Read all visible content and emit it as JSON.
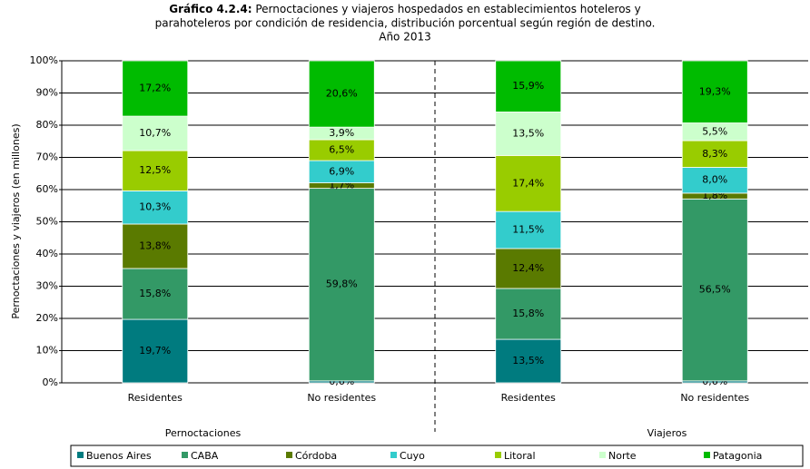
{
  "chart_data": {
    "type": "stacked_bar",
    "title": {
      "prefix": "Gráfico 4.2.4:",
      "lines": [
        "Pernoctaciones y viajeros hospedados en establecimientos hoteleros y",
        "parahoteleros por condición de residencia, distribución porcentual según región de destino.",
        "Año 2013"
      ]
    },
    "y_label": "Pernoctaciones y viajeros (en millones)",
    "categories": [
      "Residentes",
      "No residentes",
      "Residentes",
      "No residentes"
    ],
    "groups": [
      "Pernoctaciones",
      "Viajeros"
    ],
    "ylim": [
      0,
      100
    ],
    "yticks": [
      {
        "value": 0,
        "label": "0%"
      },
      {
        "value": 10,
        "label": "10%"
      },
      {
        "value": 20,
        "label": "20%"
      },
      {
        "value": 30,
        "label": "30%"
      },
      {
        "value": 40,
        "label": "40%"
      },
      {
        "value": 50,
        "label": "50%"
      },
      {
        "value": 60,
        "label": "60%"
      },
      {
        "value": 70,
        "label": "70%"
      },
      {
        "value": 80,
        "label": "80%"
      },
      {
        "value": 90,
        "label": "90%"
      },
      {
        "value": 100,
        "label": "100%"
      }
    ],
    "grid": true,
    "legend": "bottom",
    "series": [
      {
        "name": "Buenos Aires",
        "color": "#007b7f",
        "values": [
          19.7,
          0.6,
          13.5,
          0.6
        ],
        "value_labels": [
          "19,7%",
          "0,6%",
          "13,5%",
          "0,6%"
        ]
      },
      {
        "name": "CABA",
        "color": "#339966",
        "values": [
          15.8,
          59.8,
          15.8,
          56.5
        ],
        "value_labels": [
          "15,8%",
          "59,8%",
          "15,8%",
          "56,5%"
        ]
      },
      {
        "name": "Córdoba",
        "color": "#5a7a00",
        "values": [
          13.8,
          1.7,
          12.4,
          1.8
        ],
        "value_labels": [
          "13,8%",
          "1,7%",
          "12,4%",
          "1,8%"
        ]
      },
      {
        "name": "Cuyo",
        "color": "#33cccc",
        "values": [
          10.3,
          6.9,
          11.5,
          8.0
        ],
        "value_labels": [
          "10,3%",
          "6,9%",
          "11,5%",
          "8,0%"
        ]
      },
      {
        "name": "Litoral",
        "color": "#99cc00",
        "values": [
          12.5,
          6.5,
          17.4,
          8.3
        ],
        "value_labels": [
          "12,5%",
          "6,5%",
          "17,4%",
          "8,3%"
        ]
      },
      {
        "name": "Norte",
        "color": "#ccffcc",
        "values": [
          10.7,
          3.9,
          13.5,
          5.5
        ],
        "value_labels": [
          "10,7%",
          "3,9%",
          "13,5%",
          "5,5%"
        ]
      },
      {
        "name": "Patagonia",
        "color": "#00bb00",
        "values": [
          17.2,
          20.6,
          15.9,
          19.3
        ],
        "value_labels": [
          "17,2%",
          "20,6%",
          "15,9%",
          "19,3%"
        ]
      }
    ]
  }
}
